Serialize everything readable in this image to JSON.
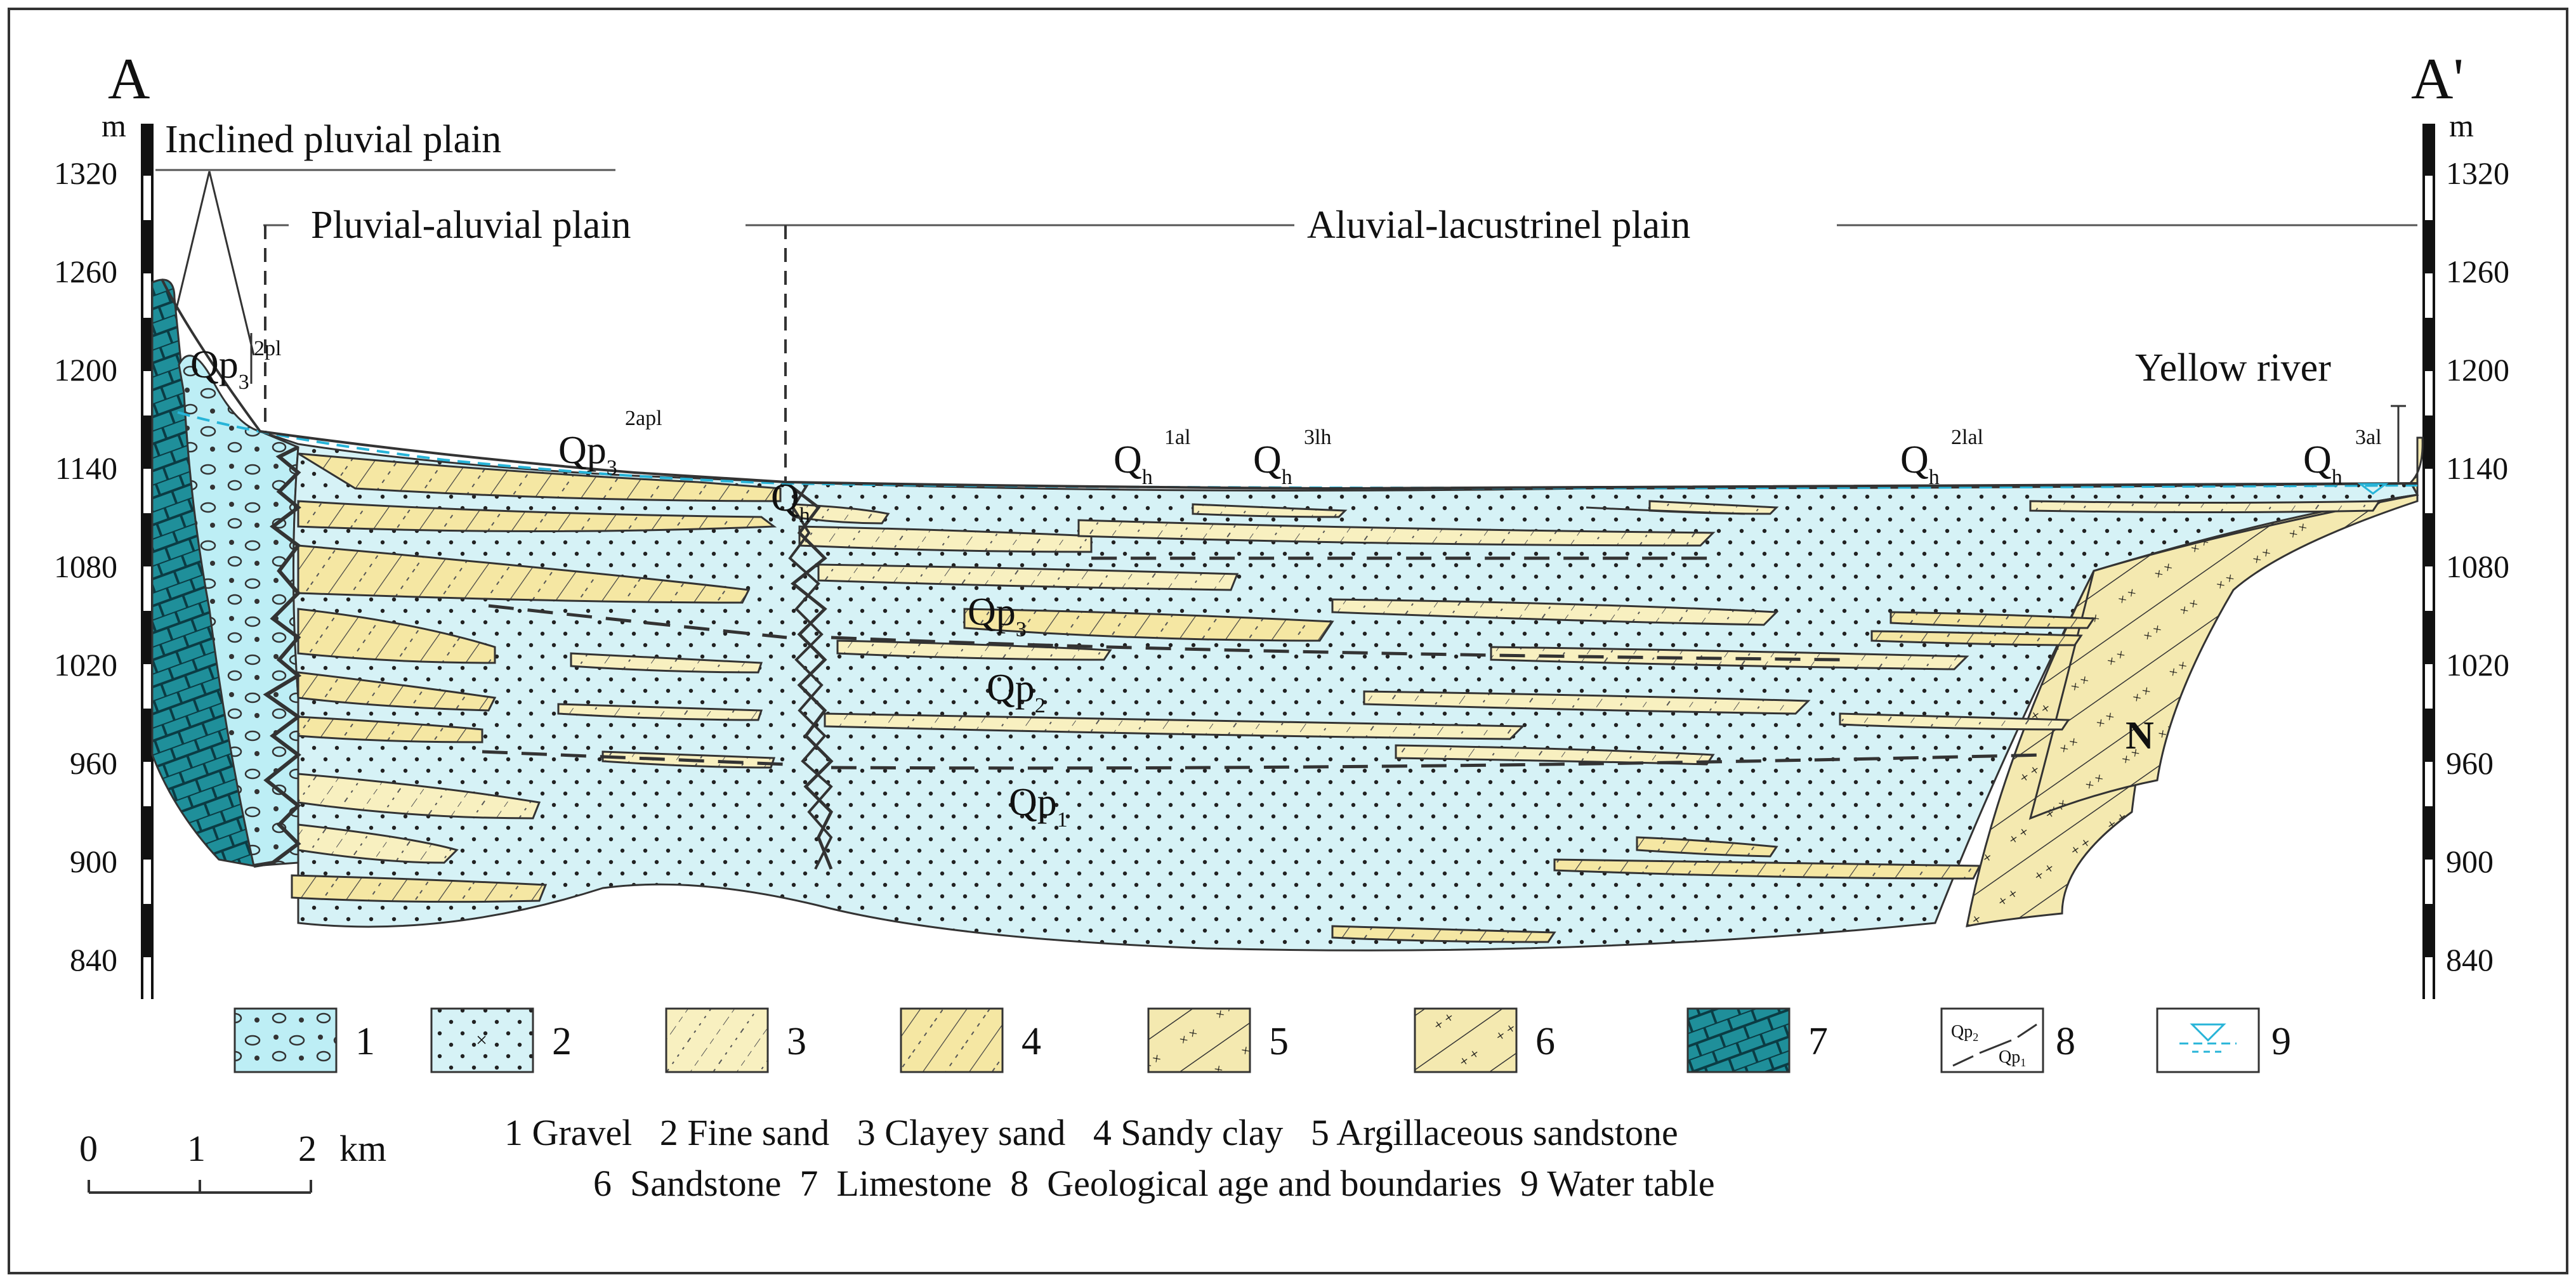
{
  "section": {
    "start_label": "A",
    "end_label": "A'",
    "unit": "m",
    "elevations": [
      "1320",
      "1260",
      "1200",
      "1140",
      "1080",
      "1020",
      "960",
      "900",
      "840"
    ]
  },
  "landforms": {
    "inclined": "Inclined pluvial plain",
    "pluvial": "Pluvial-aluvial plain",
    "lacustrine": "Aluvial-lacustrinel plain",
    "river": "Yellow river"
  },
  "units": {
    "qp3_2pl": {
      "base": "Qp",
      "sub": "3",
      "sup": "2pl"
    },
    "qp3_2apl": {
      "base": "Qp",
      "sub": "3",
      "sup": "2apl"
    },
    "qh": {
      "base": "Q",
      "sub": "h"
    },
    "qh_1al": {
      "base": "Q",
      "sub": "h",
      "sup": "1al"
    },
    "qh_3lh": {
      "base": "Q",
      "sub": "h",
      "sup": "3lh"
    },
    "qh_2lal": {
      "base": "Q",
      "sub": "h",
      "sup": "2lal"
    },
    "qh_3al": {
      "base": "Q",
      "sub": "h",
      "sup": "3al"
    },
    "qp3": {
      "base": "Qp",
      "sub": "3"
    },
    "qp2": {
      "base": "Qp",
      "sub": "2"
    },
    "qp1": {
      "base": "Qp",
      "sub": "1"
    },
    "n": "N"
  },
  "legend": {
    "numbers": [
      "1",
      "2",
      "3",
      "4",
      "5",
      "6",
      "7",
      "8",
      "9"
    ],
    "box8": {
      "top": "Qp",
      "top_sub": "2",
      "bottom": "Qp",
      "bottom_sub": "1"
    },
    "line1": "1 Gravel   2 Fine sand   3 Clayey sand   4 Sandy clay   5 Argillaceous sandstone",
    "line2": "6  Sandstone  7  Limestone  8  Geological age and boundaries  9 Water table"
  },
  "scale": {
    "ticks": [
      "0",
      "1",
      "2"
    ],
    "unit": "km"
  },
  "colors": {
    "gravel": "#bdeef5",
    "fine_sand": "#d6f2f6",
    "clayey_sand": "#f8f0c0",
    "sandy_clay": "#f5e7a3",
    "sandstone": "#f4e9b0",
    "limestone": "#1f8f9a",
    "water": "#27b4d8"
  }
}
